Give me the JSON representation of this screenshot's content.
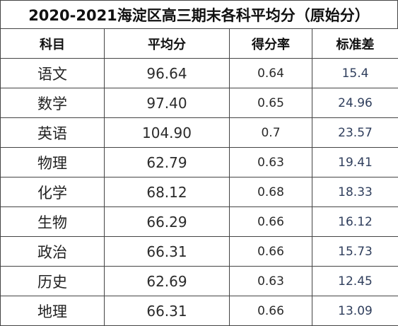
{
  "title": "2020-2021海淀区高三期末各科平均分（原始分）",
  "headers": {
    "subject": "科目",
    "average": "平均分",
    "score_rate": "得分率",
    "std_dev": "标准差"
  },
  "rows": [
    {
      "subject": "语文",
      "average": "96.64",
      "score_rate": "0.64",
      "std_dev": "15.4"
    },
    {
      "subject": "数学",
      "average": "97.40",
      "score_rate": "0.65",
      "std_dev": "24.96"
    },
    {
      "subject": "英语",
      "average": "104.90",
      "score_rate": "0.7",
      "std_dev": "23.57"
    },
    {
      "subject": "物理",
      "average": "62.79",
      "score_rate": "0.63",
      "std_dev": "19.41"
    },
    {
      "subject": "化学",
      "average": "68.12",
      "score_rate": "0.68",
      "std_dev": "18.33"
    },
    {
      "subject": "生物",
      "average": "66.29",
      "score_rate": "0.66",
      "std_dev": "16.12"
    },
    {
      "subject": "政治",
      "average": "66.31",
      "score_rate": "0.66",
      "std_dev": "15.73"
    },
    {
      "subject": "历史",
      "average": "62.69",
      "score_rate": "0.63",
      "std_dev": "12.45"
    },
    {
      "subject": "地理",
      "average": "66.31",
      "score_rate": "0.66",
      "std_dev": "13.09"
    }
  ]
}
